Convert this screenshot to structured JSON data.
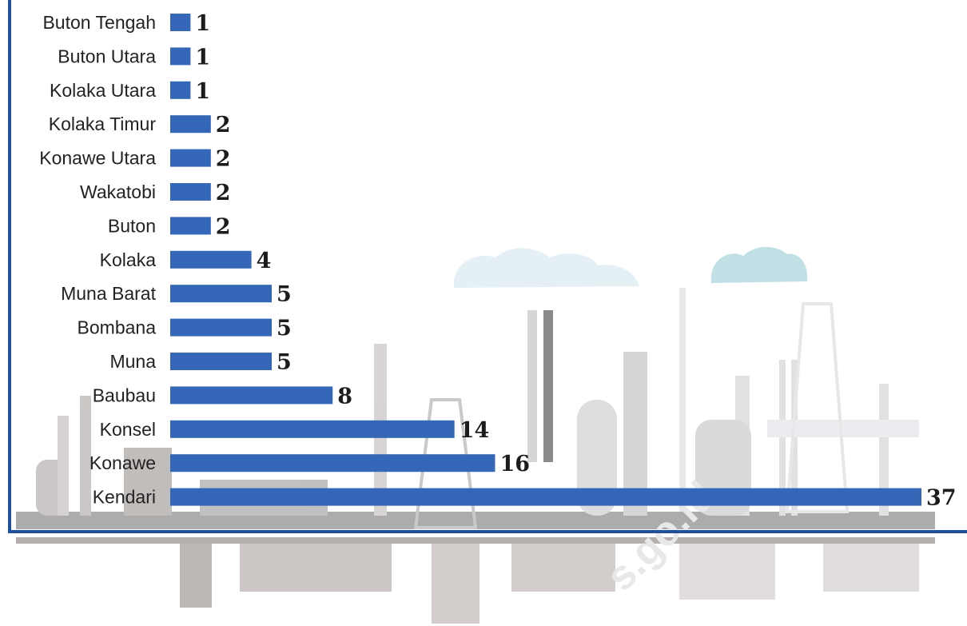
{
  "chart_data": {
    "type": "bar",
    "orientation": "horizontal",
    "categories": [
      "Buton Tengah",
      "Buton Utara",
      "Kolaka Utara",
      "Kolaka Timur",
      "Konawe Utara",
      "Wakatobi",
      "Buton",
      "Kolaka",
      "Muna Barat",
      "Bombana",
      "Muna",
      "Baubau",
      "Konsel",
      "Konawe",
      "Kendari"
    ],
    "values": [
      1,
      1,
      1,
      2,
      2,
      2,
      2,
      4,
      5,
      5,
      5,
      8,
      14,
      16,
      37
    ],
    "title": "",
    "xlabel": "",
    "ylabel": "",
    "xlim": [
      0,
      37
    ],
    "grid": false,
    "legend": "none",
    "colors": {
      "bar": "#3567b8",
      "axis": "#1f4f9e",
      "text": "#222222"
    }
  },
  "watermark": "s.go.id",
  "background": {
    "illustration": "industrial-skyline-icon"
  }
}
